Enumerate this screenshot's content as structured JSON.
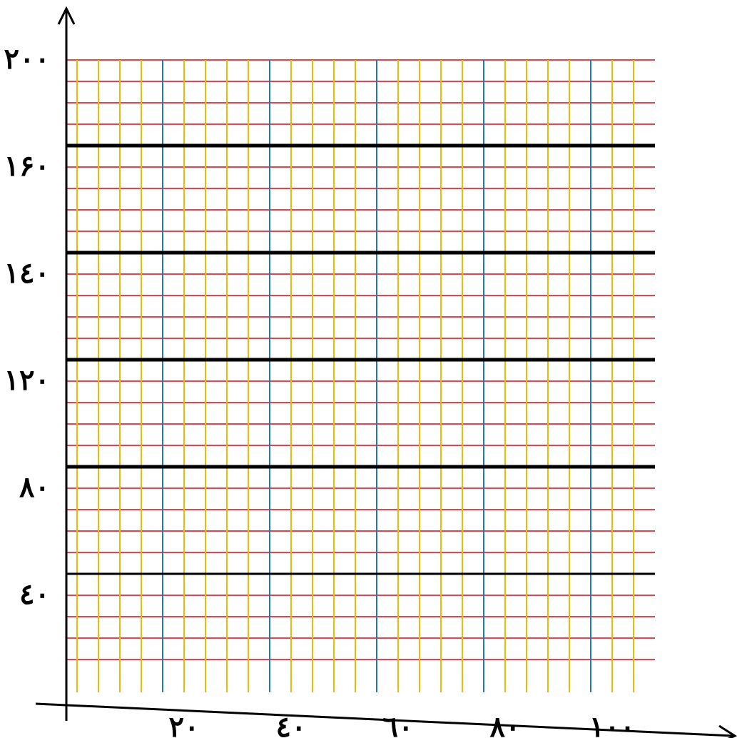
{
  "chart_data": {
    "type": "grid",
    "x_axis": {
      "tick_labels": [
        "٢٠",
        "٤٠",
        "٦٠",
        "٨٠",
        "١٠٠"
      ]
    },
    "y_axis": {
      "tick_labels": [
        "٤٠",
        "٨٠",
        "١٢٠",
        "١٤٠",
        "١۶٠",
        "٢٠٠"
      ]
    },
    "grid": {
      "vertical_count": 27,
      "vertical_major_every": 5,
      "horizontal_count": 29,
      "horizontal_major_every": 5
    },
    "colors": {
      "axis": "#000000",
      "major_horizontal": "#000000",
      "minor_horizontal": "#e8000b",
      "major_vertical": "#1f77c4",
      "minor_vertical": "#f5b700"
    }
  }
}
